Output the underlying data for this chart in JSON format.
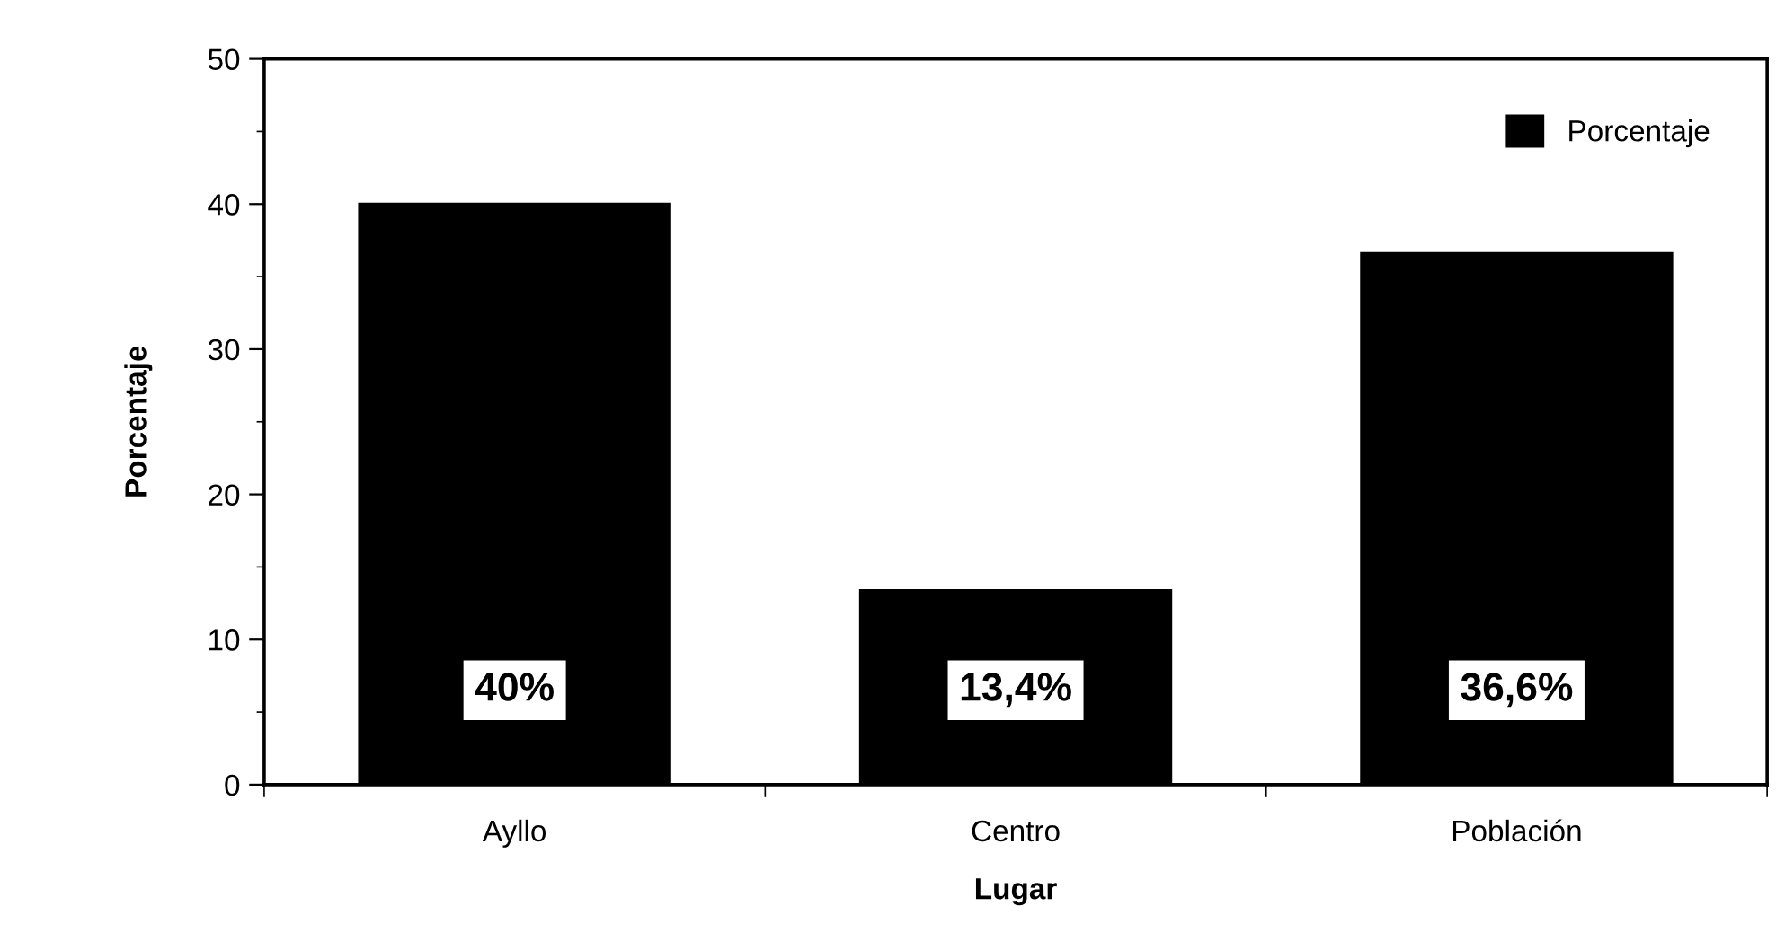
{
  "chart_data": {
    "type": "bar",
    "xlabel": "Lugar",
    "ylabel": "Porcentaje",
    "categories": [
      "Ayllo",
      "Centro",
      "Población"
    ],
    "series": [
      {
        "name": "Porcentaje",
        "color": "#000000",
        "values": [
          40,
          13.4,
          36.6
        ],
        "value_labels": [
          "40%",
          "13,4%",
          "36,6%"
        ]
      }
    ],
    "ylim": [
      0,
      50
    ],
    "yticks": [
      0,
      10,
      20,
      30,
      40,
      50
    ],
    "grid": false,
    "legend": "top right"
  }
}
